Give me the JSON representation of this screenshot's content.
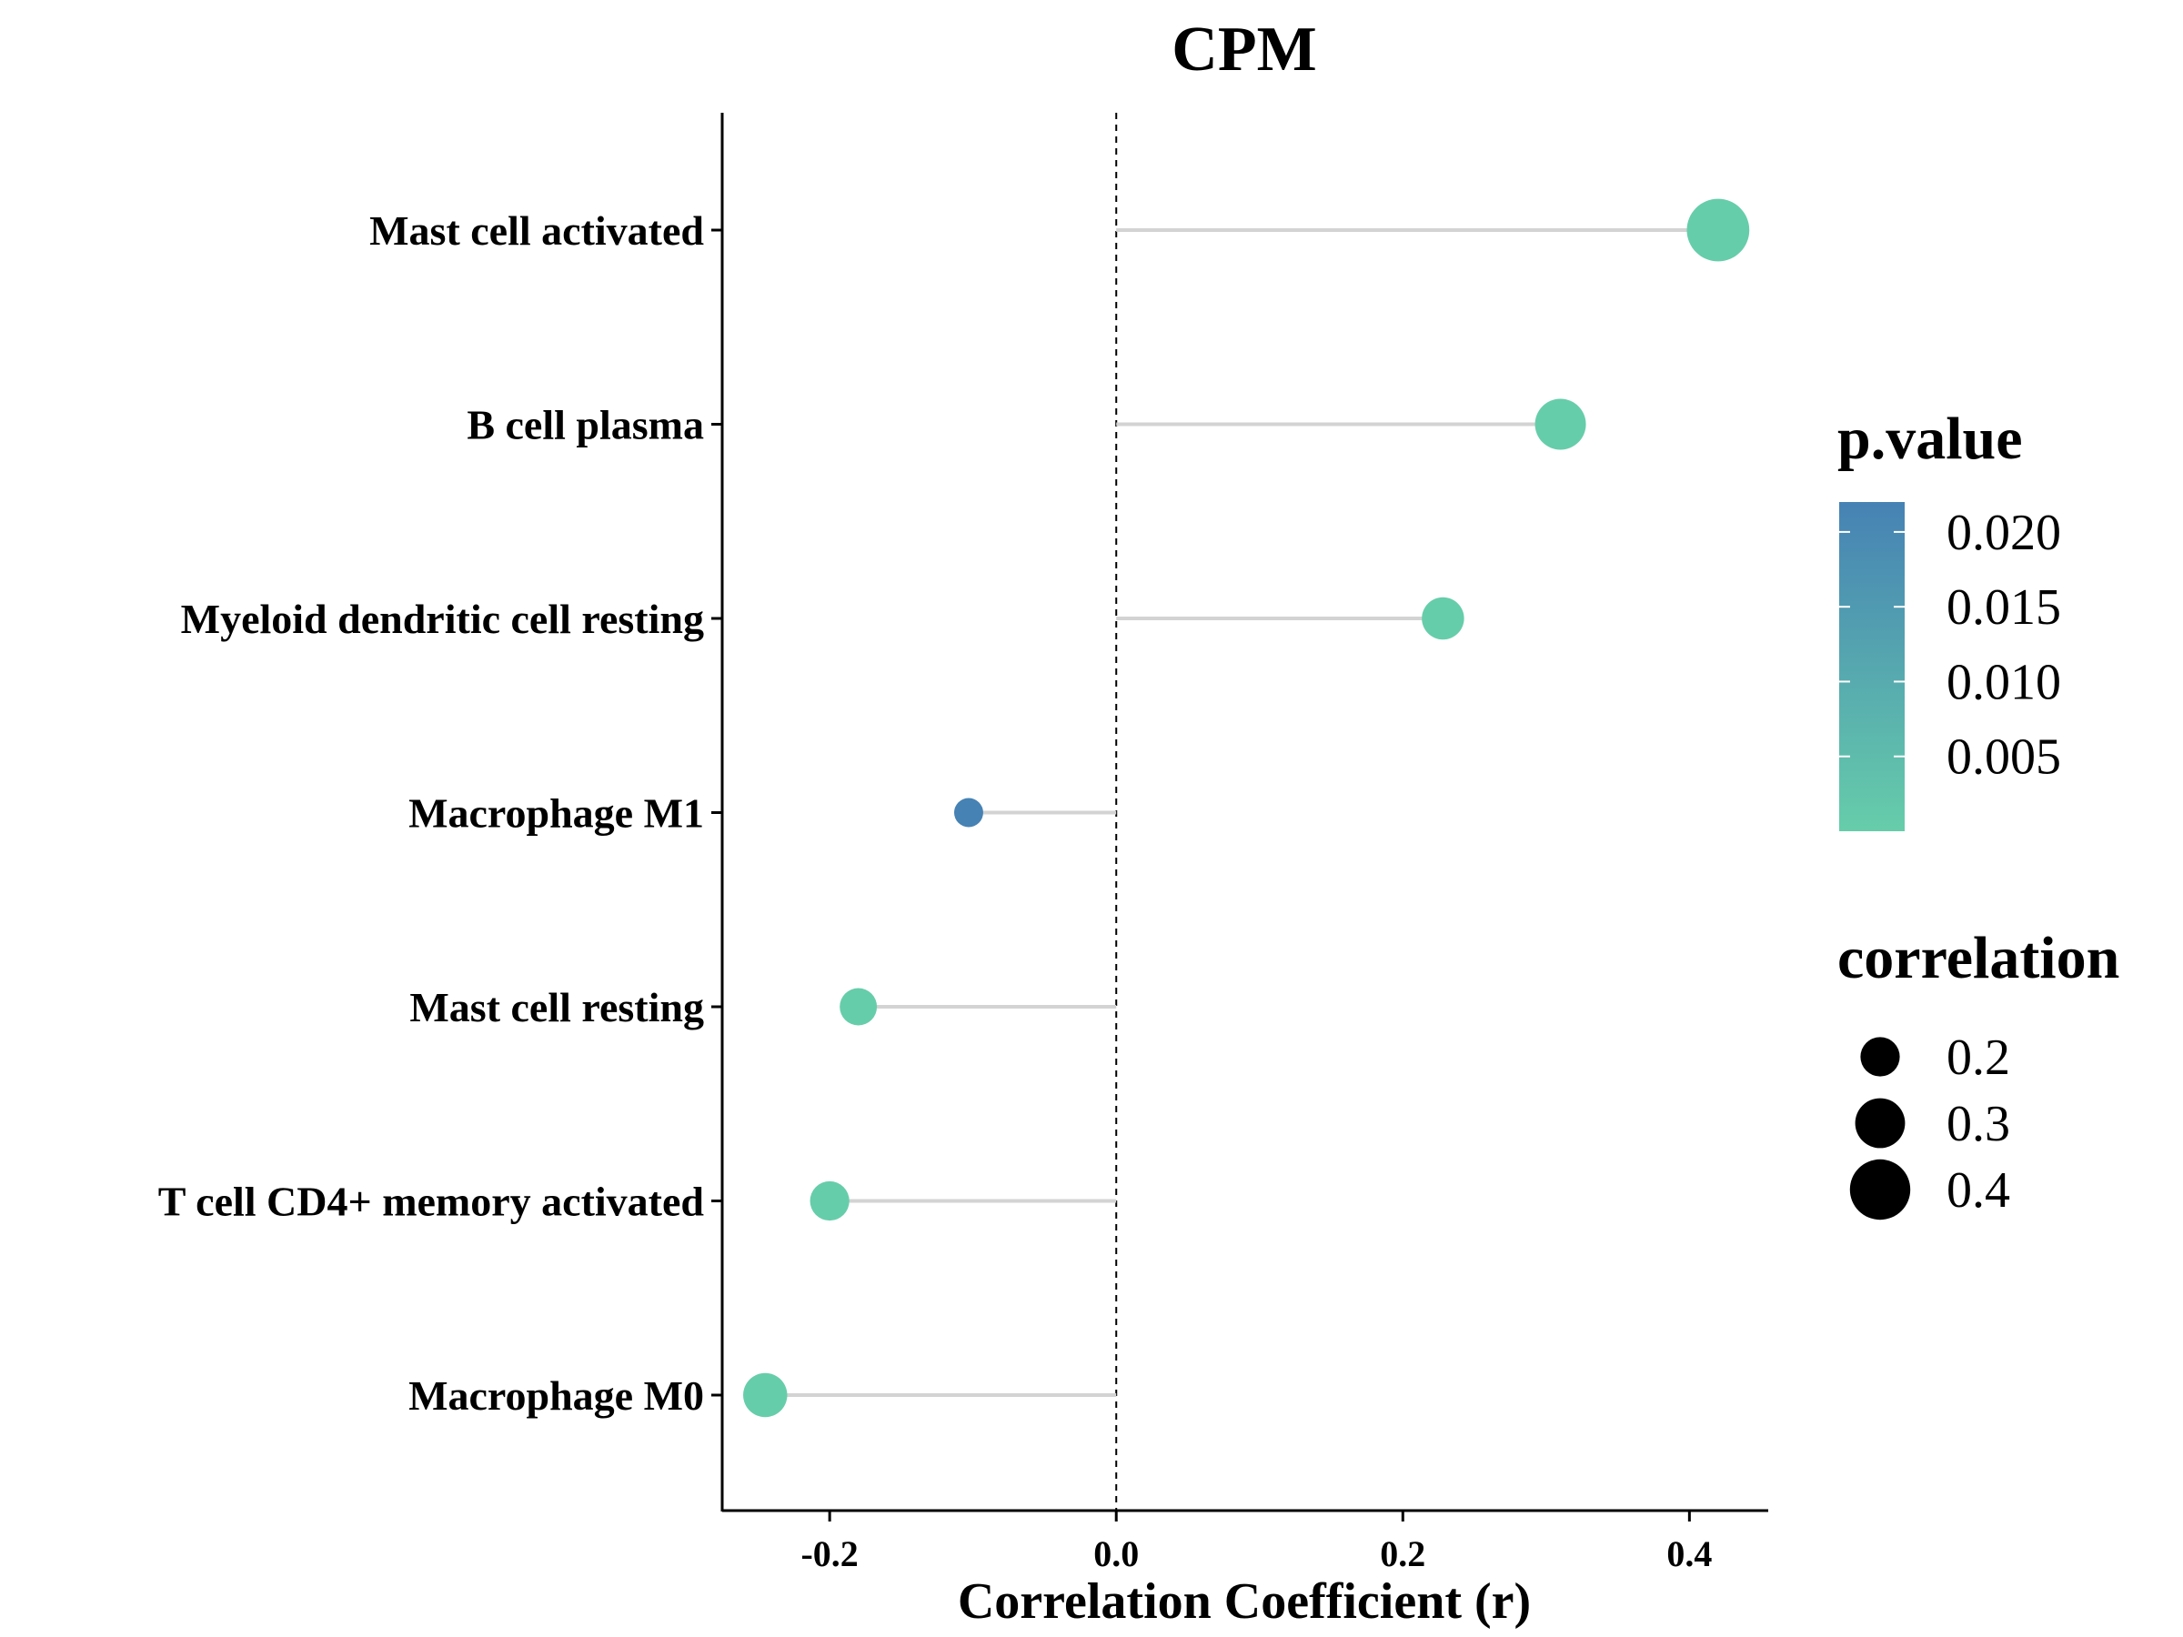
{
  "chart_data": {
    "type": "lollipop",
    "title": "CPM",
    "xlabel": "Correlation Coefficient (r)",
    "ylabel": "",
    "xlim": [
      -0.275,
      0.455
    ],
    "xticks": [
      -0.2,
      0.0,
      0.2,
      0.4
    ],
    "xtick_labels": [
      "-0.2",
      "0.0",
      "0.2",
      "0.4"
    ],
    "reference_line_x": 0.0,
    "categories": [
      "Mast cell activated",
      "B cell plasma",
      "Myeloid dendritic cell resting",
      "Macrophage M1",
      "Mast cell resting",
      "T cell CD4+ memory activated",
      "Macrophage M0"
    ],
    "values": [
      0.42,
      0.31,
      0.228,
      -0.103,
      -0.18,
      -0.2,
      -0.245
    ],
    "p_values": [
      1e-05,
      5e-05,
      0.0003,
      0.022,
      0.0008,
      0.0006,
      8e-05
    ],
    "colors": [
      "#66CDAA",
      "#66CDAA",
      "#66CDAA",
      "#4682B4",
      "#66CDAA",
      "#66CDAA",
      "#66CDAA"
    ],
    "color_legend": {
      "title": "p.value",
      "labels": [
        "0.020",
        "0.015",
        "0.010",
        "0.005"
      ],
      "values": [
        0.02,
        0.015,
        0.01,
        0.005
      ],
      "range": [
        0.0,
        0.022
      ],
      "color_low": "#66CDAA",
      "color_high": "#4682B4"
    },
    "size_legend": {
      "title": "correlation",
      "labels": [
        "0.2",
        "0.3",
        "0.4"
      ],
      "values": [
        0.2,
        0.3,
        0.4
      ]
    },
    "segment_color": "#D3D3D3",
    "grid": false,
    "legend_position": "right"
  }
}
